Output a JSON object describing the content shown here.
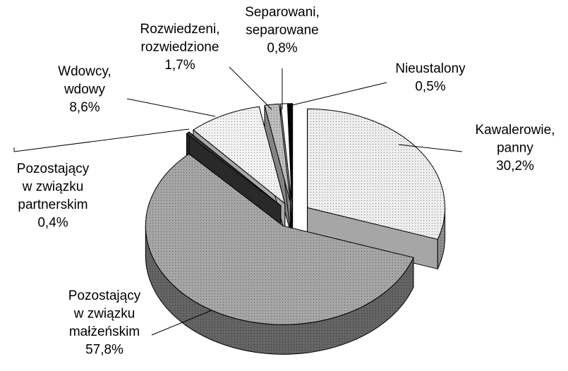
{
  "chart_data": {
    "type": "pie3d",
    "categories": [
      "Kawalerowie,\npanny",
      "Pozostający\nw związku\nmałżeńskim",
      "Pozostający\nw związku\npartnerskim",
      "Wdowcy,\nwdowy",
      "Rozwiedzeni,\nrozwiedzione",
      "Separowani,\nseparowane",
      "Nieustalony"
    ],
    "values": [
      30.2,
      57.8,
      0.4,
      8.6,
      1.7,
      0.8,
      0.5
    ],
    "value_labels": [
      "30,2%",
      "57,8%",
      "0,4%",
      "8,6%",
      "1,7%",
      "0,8%",
      "0,5%"
    ],
    "colors": [
      "#ededed",
      "#a6a6a6",
      "#3a3a3a",
      "#f2f2f2",
      "#bdbdbd",
      "#ffffff",
      "#000000"
    ]
  }
}
